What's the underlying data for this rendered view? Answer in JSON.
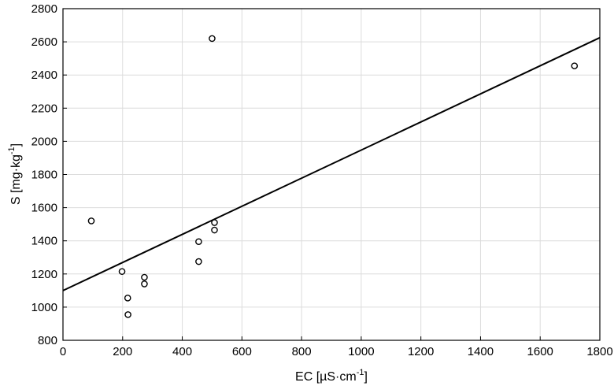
{
  "chart_data": {
    "type": "scatter",
    "xlabel": {
      "main": "EC [µS·cm",
      "exp": "-1",
      "close": "]"
    },
    "ylabel": {
      "main": "S [mg·kg",
      "exp": "-1",
      "close": "]"
    },
    "xlim": [
      0,
      1800
    ],
    "ylim": [
      800,
      2800
    ],
    "xticks": [
      0,
      200,
      400,
      600,
      800,
      1000,
      1200,
      1400,
      1600,
      1800
    ],
    "yticks": [
      800,
      1000,
      1200,
      1400,
      1600,
      1800,
      2000,
      2200,
      2400,
      2600,
      2800
    ],
    "grid": true,
    "marker": "open-circle",
    "points": [
      {
        "x": 95,
        "y": 1520
      },
      {
        "x": 198,
        "y": 1215
      },
      {
        "x": 217,
        "y": 1055
      },
      {
        "x": 218,
        "y": 955
      },
      {
        "x": 273,
        "y": 1180
      },
      {
        "x": 273,
        "y": 1140
      },
      {
        "x": 455,
        "y": 1395
      },
      {
        "x": 455,
        "y": 1275
      },
      {
        "x": 500,
        "y": 2620
      },
      {
        "x": 508,
        "y": 1510
      },
      {
        "x": 508,
        "y": 1465
      },
      {
        "x": 1715,
        "y": 2455
      }
    ],
    "trendline": {
      "type": "linear",
      "x": [
        0,
        1800
      ],
      "y": [
        1100,
        2625
      ]
    }
  }
}
